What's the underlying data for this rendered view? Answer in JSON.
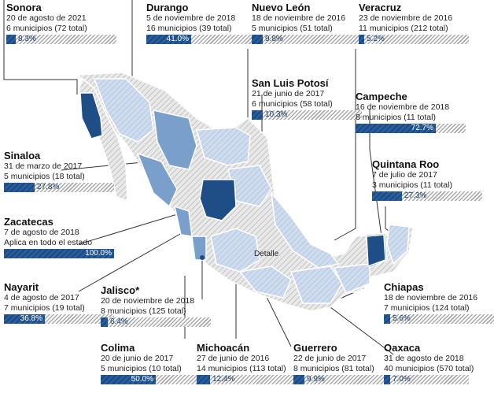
{
  "colors": {
    "dark_blue": "#1f4e86",
    "mid_blue": "#7097c4",
    "light_blue": "#c7d6ea",
    "gray_hatch": "#cfcfcf",
    "bar_fill": "#1f4e86"
  },
  "map_label": "Detalle",
  "states": [
    {
      "id": "sonora",
      "name": "Sonora",
      "line1": "20 de agosto de 2021",
      "line2": "6 municipios (72 total)",
      "pct": "8.3%",
      "value": 0.083
    },
    {
      "id": "durango",
      "name": "Durango",
      "line1": "5 de noviembre de 2018",
      "line2": "16 municipios (39 total)",
      "pct": "41.0%",
      "value": 0.41
    },
    {
      "id": "nuevo-leon",
      "name": "Nuevo León",
      "line1": "18 de noviembre de 2016",
      "line2": "5 municipios (51 total)",
      "pct": "9.8%",
      "value": 0.098
    },
    {
      "id": "veracruz",
      "name": "Veracruz",
      "line1": "23 de noviembre de 2016",
      "line2": "11 municipios (212 total)",
      "pct": "5.2%",
      "value": 0.052
    },
    {
      "id": "san-luis-potosi",
      "name": "San Luis Potosí",
      "line1": "21 de junio de 2017",
      "line2": "6 municipios (58 total)",
      "pct": "10.3%",
      "value": 0.103
    },
    {
      "id": "campeche",
      "name": "Campeche",
      "line1": "16 de noviembre de 2018",
      "line2": "8 municipios (11 total)",
      "pct": "72.7%",
      "value": 0.727
    },
    {
      "id": "sinaloa",
      "name": "Sinaloa",
      "line1": "31 de marzo de 2017",
      "line2": "5 municipios (18 total)",
      "pct": "27.8%",
      "value": 0.278
    },
    {
      "id": "quintana-roo",
      "name": "Quintana Roo",
      "line1": "7 de julio de 2017",
      "line2": "3 municipios (11 total)",
      "pct": "27.3%",
      "value": 0.273
    },
    {
      "id": "zacatecas",
      "name": "Zacatecas",
      "line1": "7 de agosto de 2018",
      "line2": "Aplica en todo el estado",
      "pct": "100.0%",
      "value": 1.0
    },
    {
      "id": "nayarit",
      "name": "Nayarit",
      "line1": "4 de agosto de 2017",
      "line2": "7 municipios (19 total)",
      "pct": "36.8%",
      "value": 0.368
    },
    {
      "id": "jalisco",
      "name": "Jalisco*",
      "line1": "20 de noviembre de 2018",
      "line2": "8 municipios (125 total)",
      "pct": "6.4%",
      "value": 0.064
    },
    {
      "id": "chiapas",
      "name": "Chiapas",
      "line1": "18 de noviembre de 2016",
      "line2": "7 municipios (124 total)",
      "pct": "5.6%",
      "value": 0.056
    },
    {
      "id": "colima",
      "name": "Colima",
      "line1": "20 de junio de 2017",
      "line2": "5 municipios (10 total)",
      "pct": "50.0%",
      "value": 0.5
    },
    {
      "id": "michoacan",
      "name": "Michoacán",
      "line1": "27 de junio de 2016",
      "line2": "14 municipios (113 total)",
      "pct": "12.4%",
      "value": 0.124
    },
    {
      "id": "guerrero",
      "name": "Guerrero",
      "line1": "22 de junio de 2017",
      "line2": "8 municipios (81 total)",
      "pct": "9.9%",
      "value": 0.099
    },
    {
      "id": "oaxaca",
      "name": "Oaxaca",
      "line1": "31 de agosto de 2018",
      "line2": "40 municipios (570 total)",
      "pct": "7.0%",
      "value": 0.07
    }
  ]
}
